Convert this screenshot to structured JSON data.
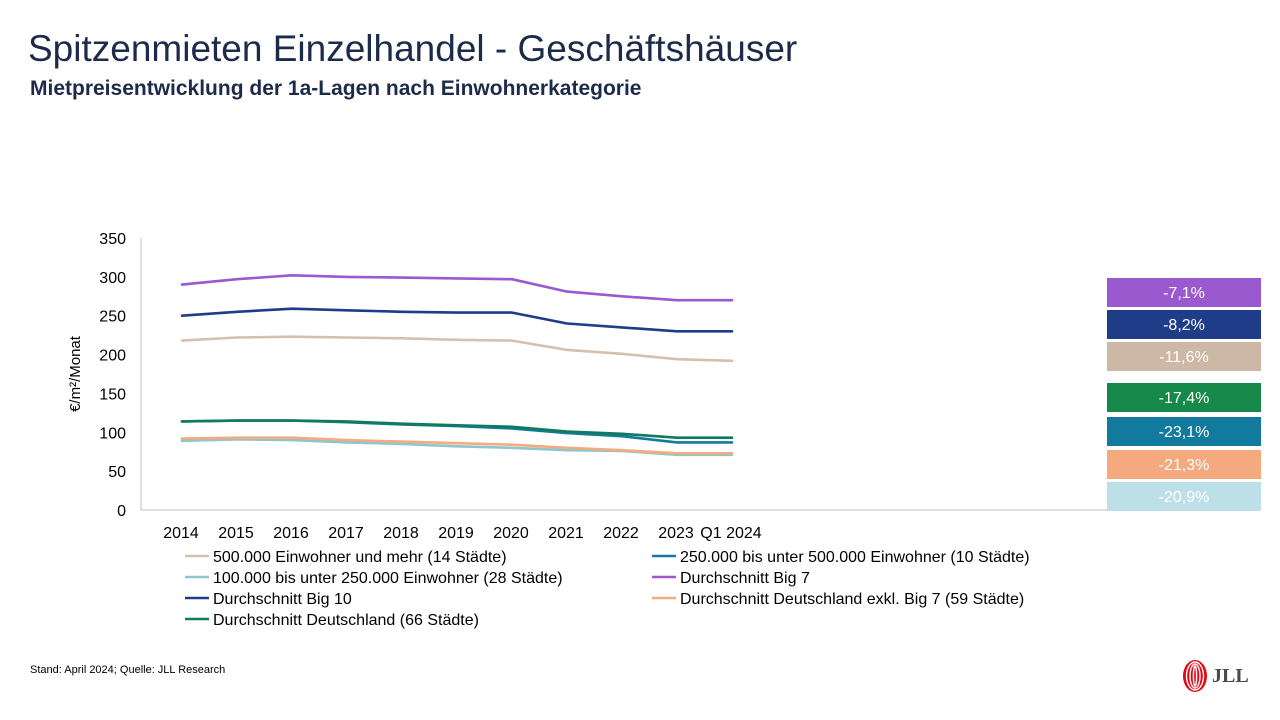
{
  "header": {
    "title": "Spitzenmieten Einzelhandel - Geschäftshäuser",
    "subtitle": "Mietpreisentwicklung der 1a-Lagen nach Einwohnerkategorie"
  },
  "footer": {
    "source": "Stand: April 2024; Quelle: JLL Research",
    "logo_text": "JLL"
  },
  "chart_data": {
    "type": "line",
    "ylabel": "€/m²/Monat",
    "xlabel": "",
    "ylim": [
      0,
      350
    ],
    "yticks": [
      0,
      50,
      100,
      150,
      200,
      250,
      300,
      350
    ],
    "categories": [
      "2014",
      "2015",
      "2016",
      "2017",
      "2018",
      "2019",
      "2020",
      "2021",
      "2022",
      "2023",
      "Q1 2024"
    ],
    "grid": false,
    "legend_position": "bottom",
    "series": [
      {
        "name": "500.000 Einwohner und mehr (14 Städte)",
        "color": "#d5c0ad",
        "values": [
          218,
          222,
          223,
          222,
          221,
          219,
          218,
          206,
          201,
          194,
          192
        ]
      },
      {
        "name": "250.000 bis unter 500.000 Einwohner (10 Städte)",
        "color": "#127a9c",
        "values": [
          114,
          115,
          115,
          113,
          110,
          108,
          105,
          99,
          95,
          87,
          87
        ]
      },
      {
        "name": "100.000 bis unter 250.000 Einwohner (28 Städte)",
        "color": "#8fc5cf",
        "values": [
          89,
          91,
          90,
          87,
          85,
          82,
          80,
          77,
          76,
          71,
          71
        ]
      },
      {
        "name": "Durchschnitt Big 7",
        "color": "#9b59d0",
        "values": [
          290,
          297,
          302,
          300,
          299,
          298,
          297,
          281,
          275,
          270,
          270
        ]
      },
      {
        "name": "Durchschnitt Big 10",
        "color": "#1f3c88",
        "values": [
          250,
          255,
          259,
          257,
          255,
          254,
          254,
          240,
          235,
          230,
          230
        ]
      },
      {
        "name": "Durchschnitt Deutschland exkl. Big 7 (59 Städte)",
        "color": "#f2ac7f",
        "values": [
          92,
          93,
          93,
          90,
          88,
          86,
          84,
          80,
          77,
          73,
          73
        ]
      },
      {
        "name": "Durchschnitt Deutschland (66 Städte)",
        "color": "#0f7a5e",
        "values": [
          114,
          115,
          115,
          114,
          111,
          109,
          107,
          101,
          98,
          93,
          93
        ]
      }
    ],
    "change_labels": [
      {
        "text": "-7,1%",
        "color": "#9b59d0"
      },
      {
        "text": "-8,2%",
        "color": "#1f3c88"
      },
      {
        "text": "-11,6%",
        "color": "#cdb7a5"
      },
      {
        "text": "-17,4%",
        "color": "#16894a"
      },
      {
        "text": "-23,1%",
        "color": "#127a9c"
      },
      {
        "text": "-21,3%",
        "color": "#f4a97f"
      },
      {
        "text": "-20,9%",
        "color": "#bde0e8"
      }
    ]
  }
}
